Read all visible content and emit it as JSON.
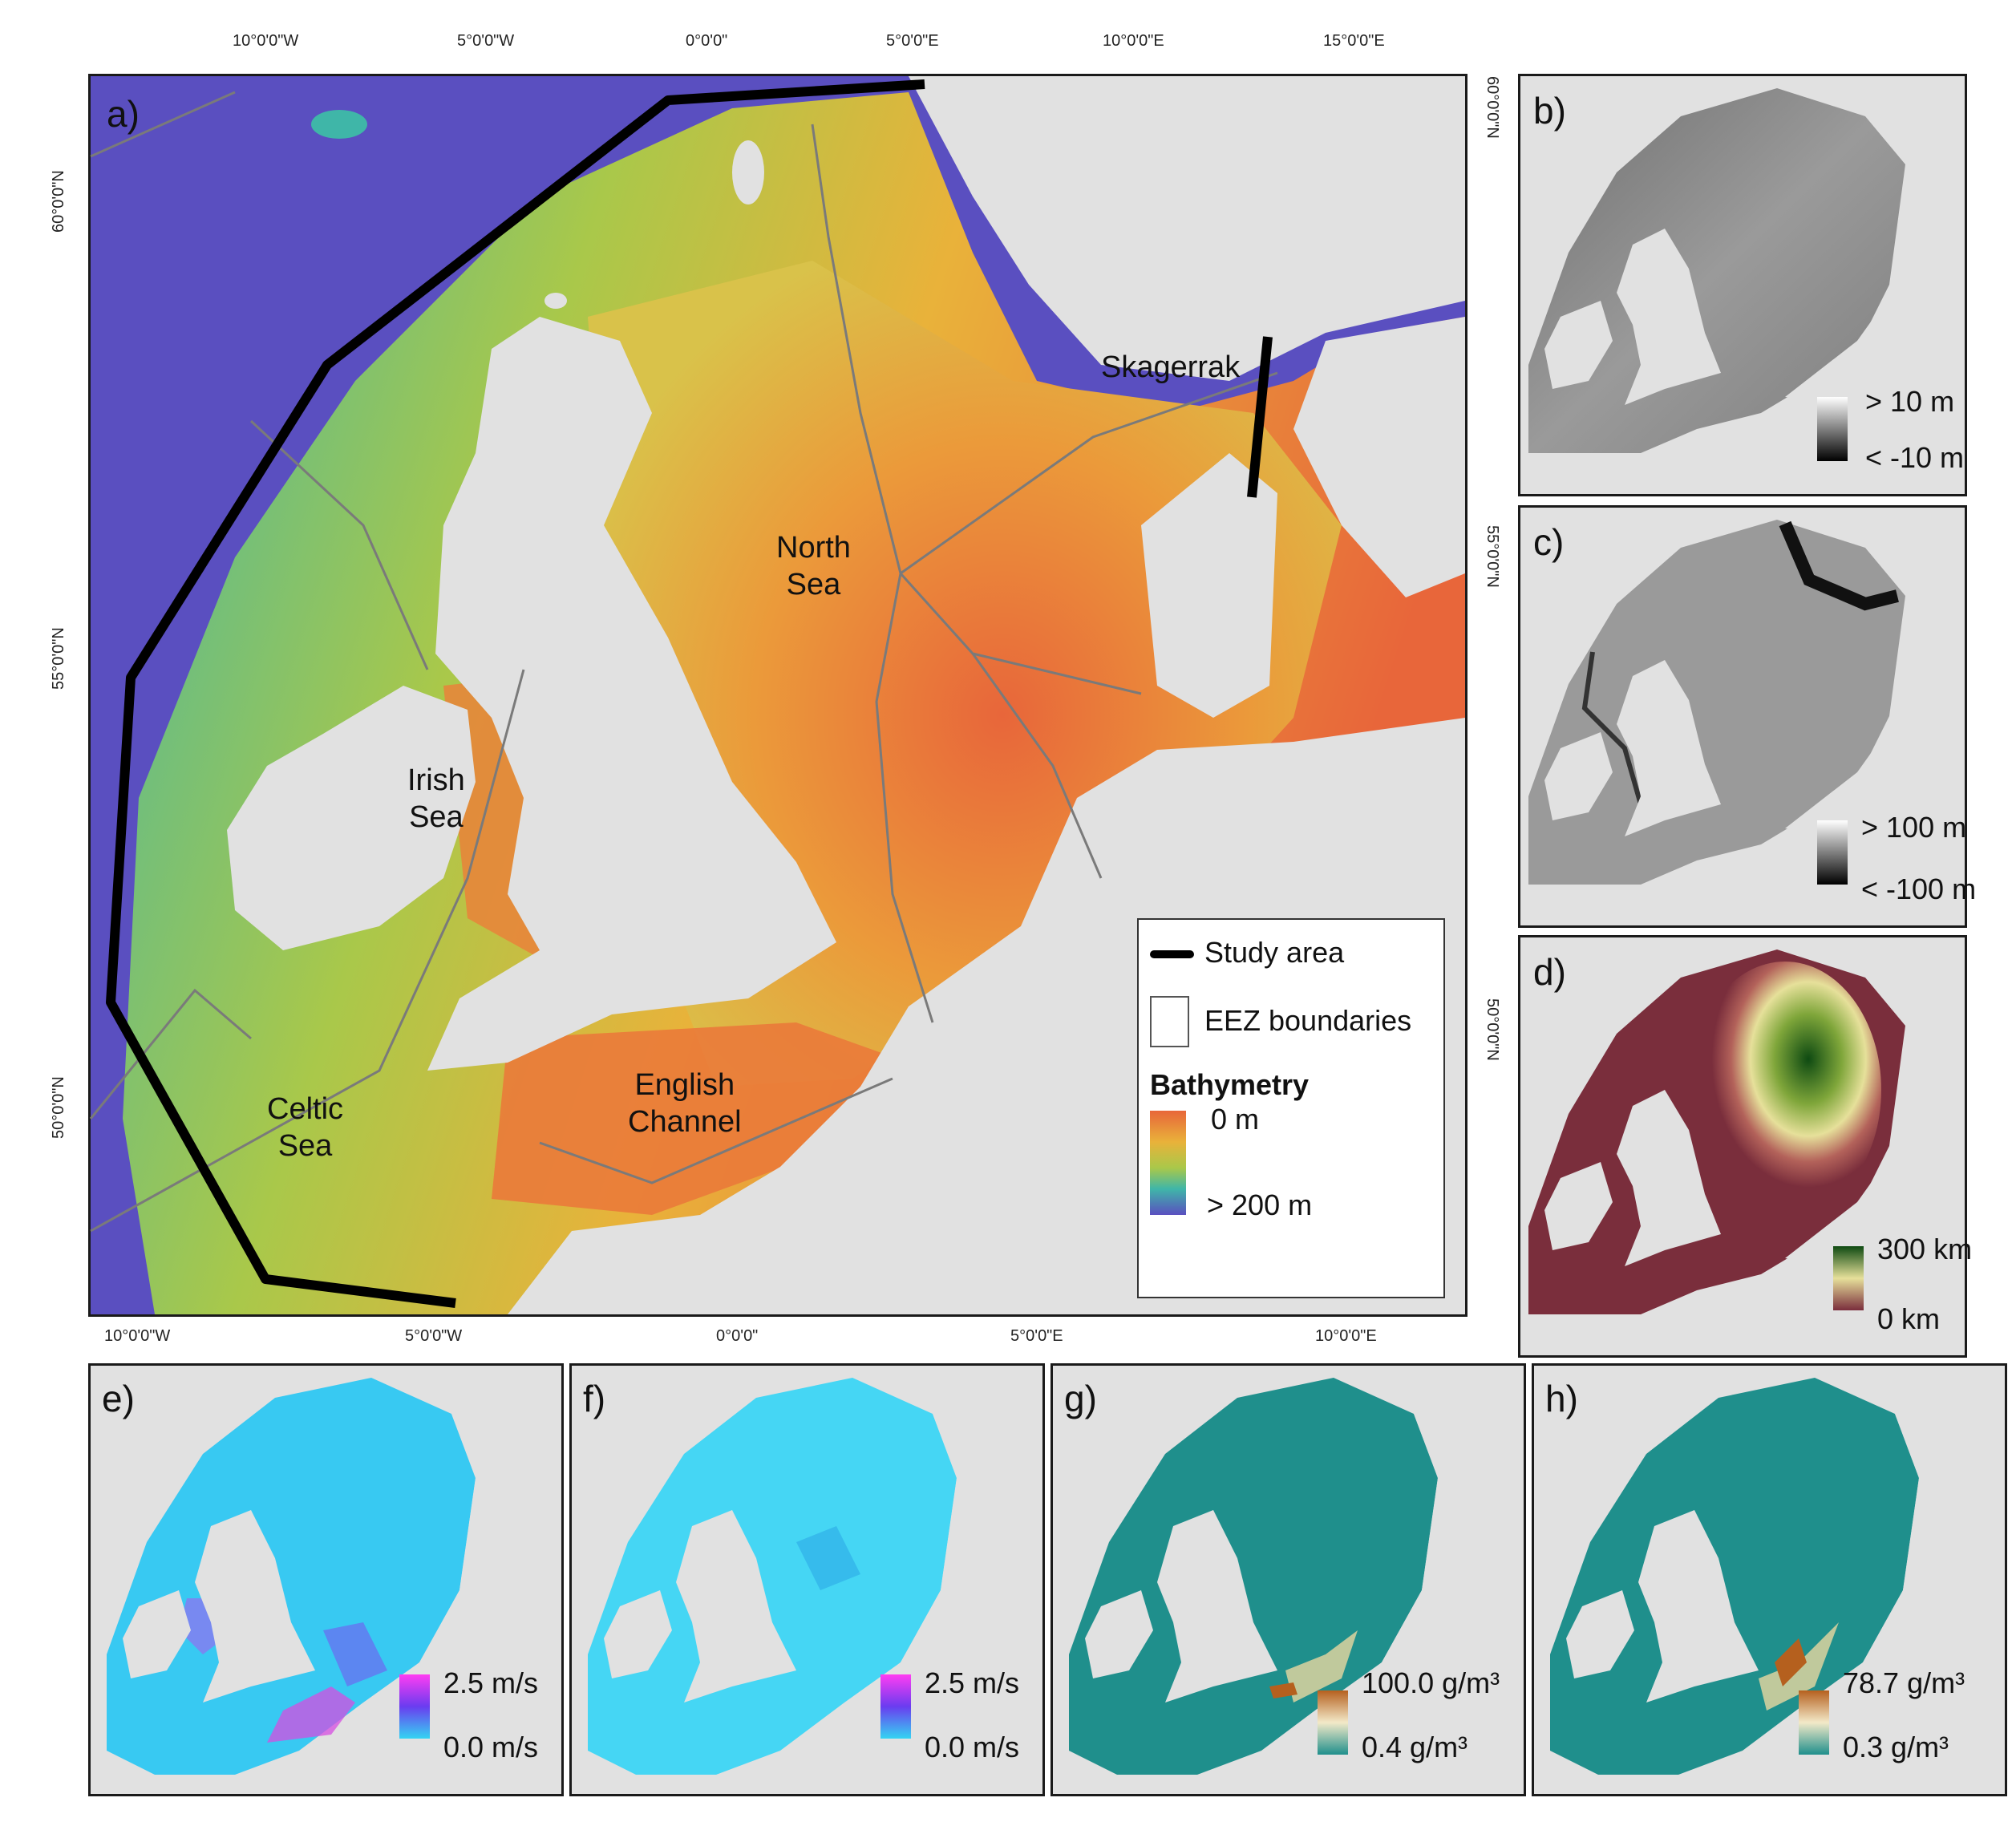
{
  "panel_a": {
    "label": "a)",
    "top_ticks": [
      "10°0'0\"W",
      "5°0'0\"W",
      "0°0'0\"",
      "5°0'0\"E",
      "10°0'0\"E",
      "15°0'0\"E"
    ],
    "bottom_ticks": [
      "10°0'0\"W",
      "5°0'0\"W",
      "0°0'0\"",
      "5°0'0\"E",
      "10°0'0\"E"
    ],
    "left_ticks": [
      "60°0'0\"N",
      "55°0'0\"N",
      "50°0'0\"N"
    ],
    "right_ticks": [
      "60°0'0\"N",
      "55°0'0\"N",
      "50°0'0\"N"
    ],
    "regions": {
      "north_sea": "North\nSea",
      "irish_sea": "Irish\nSea",
      "celtic_sea": "Celtic\nSea",
      "english_channel": "English\nChannel",
      "skagerrak": "Skagerrak"
    },
    "legend": {
      "study_area": "Study area",
      "eez": "EEZ boundaries",
      "bathymetry_title": "Bathymetry",
      "bathy_min": "0 m",
      "bathy_max": "> 200 m"
    }
  },
  "panel_b": {
    "label": "b)",
    "legend_high": "> 10 m",
    "legend_low": "< -10 m"
  },
  "panel_c": {
    "label": "c)",
    "legend_high": "> 100 m",
    "legend_low": "< -100 m"
  },
  "panel_d": {
    "label": "d)",
    "legend_high": "300 km",
    "legend_low": "0 km"
  },
  "panel_e": {
    "label": "e)",
    "legend_high": "2.5 m/s",
    "legend_low": "0.0 m/s"
  },
  "panel_f": {
    "label": "f)",
    "legend_high": "2.5 m/s",
    "legend_low": "0.0 m/s"
  },
  "panel_g": {
    "label": "g)",
    "legend_high": "100.0 g/m³",
    "legend_low": "0.4 g/m³"
  },
  "panel_h": {
    "label": "h)",
    "legend_high": "78.7 g/m³",
    "legend_low": "0.3 g/m³"
  },
  "colors": {
    "land": "#e1e1e1",
    "deep_water": "#5a4fc0",
    "bathy_shallow": "#e8663a",
    "bathy_mid": "#e9b23a",
    "bathy_deep": "#3fb6a8",
    "eez_line": "#7a7a7a",
    "study_line": "#000000"
  }
}
